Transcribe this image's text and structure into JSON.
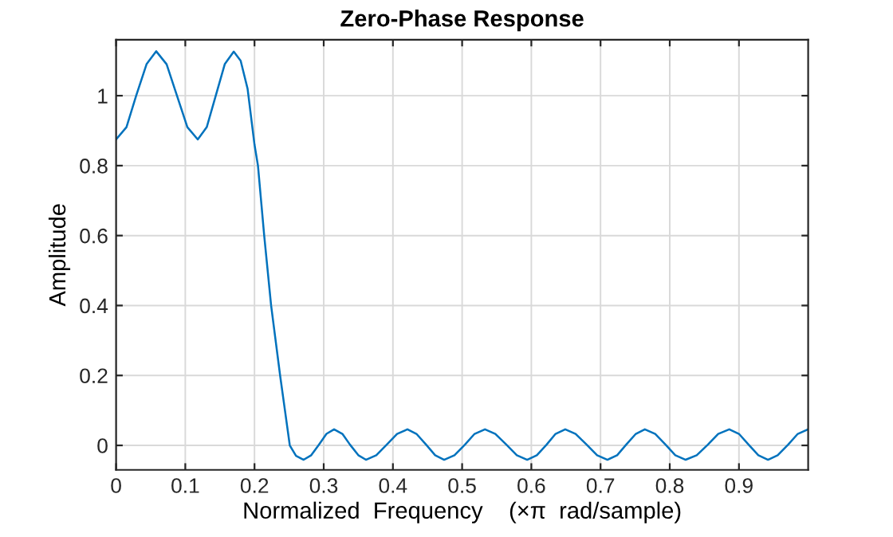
{
  "chart_data": {
    "type": "line",
    "title": "Zero-Phase Response",
    "xlabel": "Normalized  Frequency    (×π  rad/sample)",
    "ylabel": "Amplitude",
    "series": [
      {
        "color": "#0072bd",
        "x": [
          0,
          0.015,
          0.029,
          0.044,
          0.058,
          0.073,
          0.088,
          0.103,
          0.118,
          0.131,
          0.144,
          0.157,
          0.17,
          0.18,
          0.19,
          0.2,
          0.205,
          0.214,
          0.224,
          0.237,
          0.251,
          0.26,
          0.271,
          0.282,
          0.293,
          0.304,
          0.315,
          0.327,
          0.338,
          0.35,
          0.361,
          0.376,
          0.391,
          0.406,
          0.421,
          0.434,
          0.448,
          0.461,
          0.474,
          0.489,
          0.504,
          0.518,
          0.533,
          0.548,
          0.564,
          0.579,
          0.594,
          0.608,
          0.622,
          0.635,
          0.649,
          0.664,
          0.68,
          0.695,
          0.71,
          0.724,
          0.737,
          0.751,
          0.764,
          0.779,
          0.794,
          0.808,
          0.823,
          0.839,
          0.855,
          0.87,
          0.886,
          0.9,
          0.914,
          0.928,
          0.942,
          0.956,
          0.971,
          0.985,
          1.0
        ],
        "values": [
          0.875,
          0.91,
          1.0,
          1.09,
          1.127,
          1.09,
          1.0,
          0.91,
          0.875,
          0.91,
          1.0,
          1.09,
          1.126,
          1.1,
          1.02,
          0.86,
          0.8,
          0.6,
          0.4,
          0.2,
          0,
          -0.03,
          -0.041,
          -0.028,
          0.002,
          0.033,
          0.046,
          0.033,
          0.002,
          -0.028,
          -0.041,
          -0.028,
          0.002,
          0.033,
          0.046,
          0.033,
          0.002,
          -0.028,
          -0.041,
          -0.028,
          0.002,
          0.033,
          0.046,
          0.033,
          0.002,
          -0.028,
          -0.041,
          -0.028,
          0.002,
          0.033,
          0.046,
          0.033,
          0.002,
          -0.028,
          -0.041,
          -0.028,
          0.002,
          0.033,
          0.046,
          0.033,
          0.002,
          -0.028,
          -0.041,
          -0.028,
          0.002,
          0.033,
          0.046,
          0.033,
          0.002,
          -0.028,
          -0.041,
          -0.028,
          0.002,
          0.033,
          0.046
        ]
      }
    ],
    "xlim": [
      0,
      1
    ],
    "xticks": [
      0,
      0.1,
      0.2,
      0.3,
      0.4,
      0.5,
      0.6,
      0.7,
      0.8,
      0.9
    ],
    "ylim": [
      -0.07,
      1.16
    ],
    "yticks": [
      0,
      0.2,
      0.4,
      0.6,
      0.8,
      1
    ],
    "grid": true,
    "line_style": "solid",
    "marker": "none",
    "legend": false
  }
}
